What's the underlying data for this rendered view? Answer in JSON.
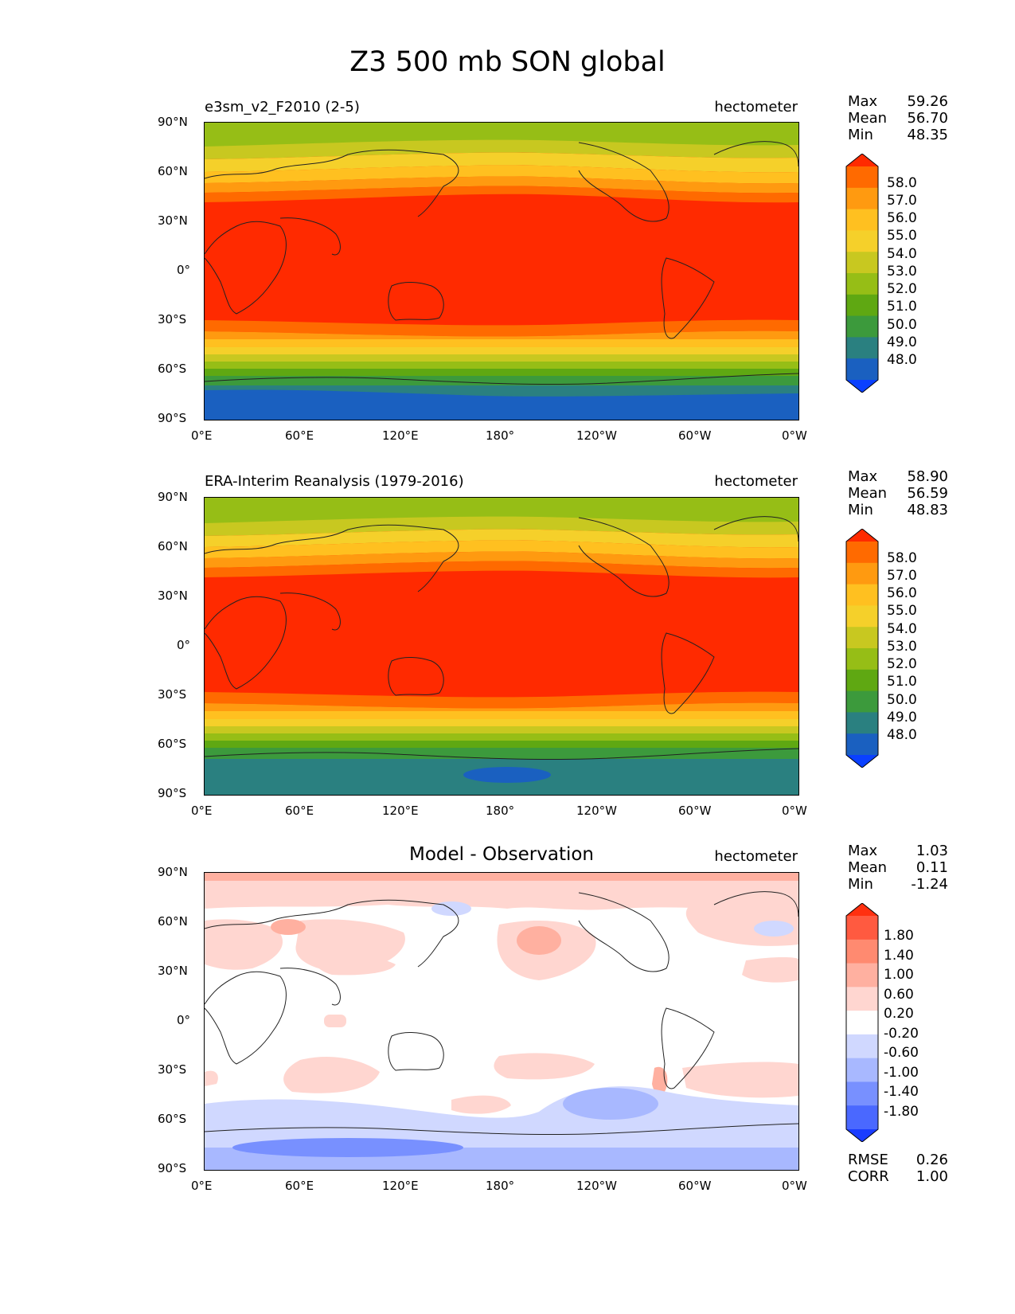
{
  "figure": {
    "title": "Z3 500 mb SON global"
  },
  "x_ticks": [
    "0°E",
    "60°E",
    "120°E",
    "180°",
    "120°W",
    "60°W",
    "0°W"
  ],
  "y_ticks": [
    "90°N",
    "60°N",
    "30°N",
    "0°",
    "30°S",
    "60°S",
    "90°S"
  ],
  "panels": [
    {
      "label": "e3sm_v2_F2010 (2-5)",
      "units": "hectometer",
      "stats": {
        "max_label": "Max",
        "max": "59.26",
        "mean_label": "Mean",
        "mean": "56.70",
        "min_label": "Min",
        "min": "48.35"
      },
      "colorbar": {
        "labels": [
          "58.0",
          "57.0",
          "56.0",
          "55.0",
          "54.0",
          "53.0",
          "52.0",
          "51.0",
          "50.0",
          "49.0",
          "48.0"
        ],
        "colors": [
          "#ff2a00",
          "#ff6a00",
          "#ff9a10",
          "#ffc020",
          "#f5d02a",
          "#c8c820",
          "#96be16",
          "#5fa812",
          "#3c9a3c",
          "#2a8080",
          "#1a60c0",
          "#0a40ff"
        ]
      }
    },
    {
      "label": "ERA-Interim Reanalysis (1979-2016)",
      "units": "hectometer",
      "stats": {
        "max_label": "Max",
        "max": "58.90",
        "mean_label": "Mean",
        "mean": "56.59",
        "min_label": "Min",
        "min": "48.83"
      },
      "colorbar": {
        "labels": [
          "58.0",
          "57.0",
          "56.0",
          "55.0",
          "54.0",
          "53.0",
          "52.0",
          "51.0",
          "50.0",
          "49.0",
          "48.0"
        ],
        "colors": [
          "#ff2a00",
          "#ff6a00",
          "#ff9a10",
          "#ffc020",
          "#f5d02a",
          "#c8c820",
          "#96be16",
          "#5fa812",
          "#3c9a3c",
          "#2a8080",
          "#1a60c0",
          "#0a40ff"
        ]
      }
    },
    {
      "label": "Model - Observation",
      "units": "hectometer",
      "stats": {
        "max_label": "Max",
        "max": "1.03",
        "mean_label": "Mean",
        "mean": "0.11",
        "min_label": "Min",
        "min": "-1.24"
      },
      "extra": {
        "rmse_label": "RMSE",
        "rmse": "0.26",
        "corr_label": "CORR",
        "corr": "1.00"
      },
      "colorbar": {
        "labels": [
          "1.80",
          "1.40",
          "1.00",
          "0.60",
          "0.20",
          "-0.20",
          "-0.60",
          "-1.00",
          "-1.40",
          "-1.80"
        ],
        "colors": [
          "#ff3010",
          "#ff5a40",
          "#ff8a70",
          "#ffb0a0",
          "#ffd6d0",
          "#ffffff",
          "#d0d8ff",
          "#a8b8ff",
          "#7890ff",
          "#4a68ff",
          "#1a3cff"
        ]
      }
    }
  ]
}
